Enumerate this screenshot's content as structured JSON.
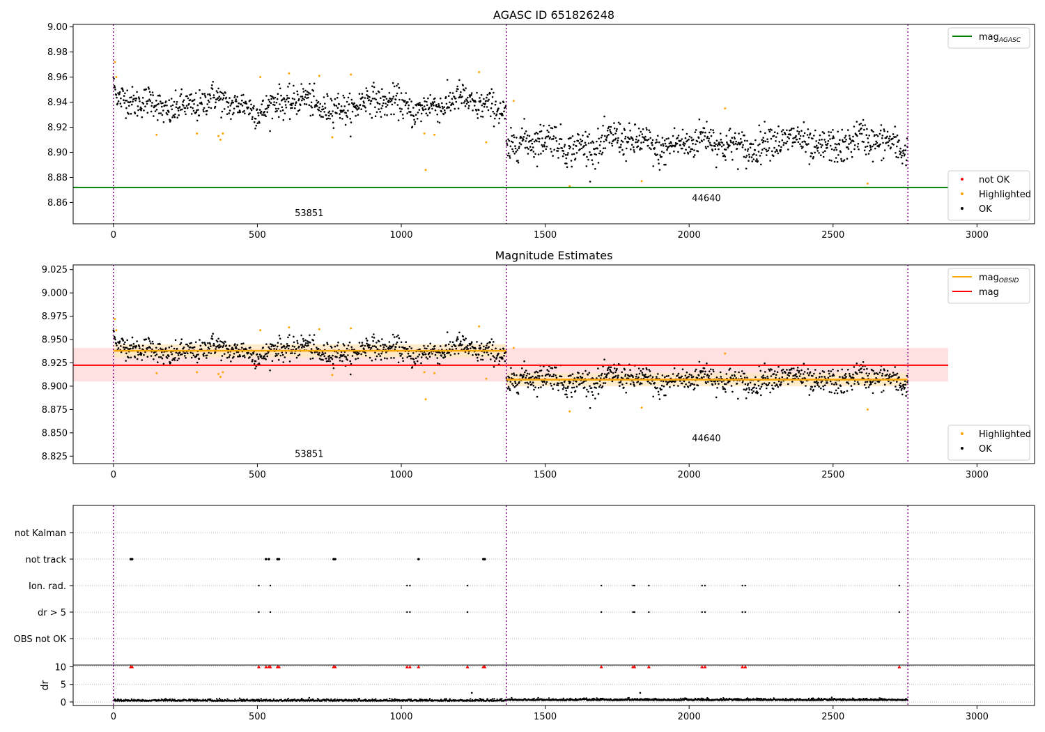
{
  "chart_data": [
    {
      "type": "scatter",
      "title": "AGASC ID 651826248",
      "xlim": [
        -140,
        3200
      ],
      "ylim": [
        8.843,
        9.002
      ],
      "x_ticks": [
        0,
        500,
        1000,
        1500,
        2000,
        2500,
        3000
      ],
      "y_ticks": [
        8.86,
        8.88,
        8.9,
        8.92,
        8.94,
        8.96,
        8.98,
        9.0
      ],
      "y_tick_labels": [
        "8.86",
        "8.88",
        "8.90",
        "8.92",
        "8.94",
        "8.96",
        "8.98",
        "9.00"
      ],
      "grid": false,
      "obsid_boundaries": [
        0,
        1365,
        2760
      ],
      "obsid_labels": [
        {
          "text": "53851",
          "x": 680,
          "y": 8.849
        },
        {
          "text": "44640",
          "x": 2060,
          "y": 8.861
        }
      ],
      "mag_agasc": {
        "y": 8.872,
        "x_range": [
          -140,
          2900
        ],
        "color": "#008000"
      },
      "legend_top": {
        "placement": "top-right",
        "entries": [
          {
            "label": "mag",
            "subscript": "AGASC",
            "color": "#008000",
            "kind": "line"
          }
        ]
      },
      "legend_bottom": {
        "placement": "bottom-right",
        "entries": [
          {
            "label": "not OK",
            "color": "#ff0000",
            "kind": "point"
          },
          {
            "label": "Highlighted",
            "color": "#ffa500",
            "kind": "point"
          },
          {
            "label": "OK",
            "color": "#000000",
            "kind": "point"
          }
        ]
      },
      "segments": [
        {
          "x_range": [
            0,
            1365
          ],
          "mean": 8.938,
          "std": 0.008,
          "initial": 8.958
        },
        {
          "x_range": [
            1365,
            2760
          ],
          "mean": 8.907,
          "std": 0.009
        }
      ],
      "highlighted_points": [
        {
          "x": 5,
          "y": 8.972
        },
        {
          "x": 10,
          "y": 8.96
        },
        {
          "x": 150,
          "y": 8.914
        },
        {
          "x": 290,
          "y": 8.915
        },
        {
          "x": 365,
          "y": 8.913
        },
        {
          "x": 372,
          "y": 8.91
        },
        {
          "x": 380,
          "y": 8.915
        },
        {
          "x": 510,
          "y": 8.96
        },
        {
          "x": 610,
          "y": 8.963
        },
        {
          "x": 715,
          "y": 8.961
        },
        {
          "x": 760,
          "y": 8.912
        },
        {
          "x": 825,
          "y": 8.962
        },
        {
          "x": 1080,
          "y": 8.915
        },
        {
          "x": 1085,
          "y": 8.886
        },
        {
          "x": 1115,
          "y": 8.914
        },
        {
          "x": 1270,
          "y": 8.964
        },
        {
          "x": 1295,
          "y": 8.908
        },
        {
          "x": 1390,
          "y": 8.941
        },
        {
          "x": 1585,
          "y": 8.873
        },
        {
          "x": 1835,
          "y": 8.877
        },
        {
          "x": 2125,
          "y": 8.935
        },
        {
          "x": 2620,
          "y": 8.875
        }
      ]
    },
    {
      "type": "scatter",
      "title": "Magnitude Estimates",
      "xlim": [
        -140,
        3200
      ],
      "ylim": [
        8.817,
        9.03
      ],
      "x_ticks": [
        0,
        500,
        1000,
        1500,
        2000,
        2500,
        3000
      ],
      "y_ticks": [
        8.825,
        8.85,
        8.875,
        8.9,
        8.925,
        8.95,
        8.975,
        9.0,
        9.025
      ],
      "y_tick_labels": [
        "8.825",
        "8.850",
        "8.875",
        "8.900",
        "8.925",
        "8.950",
        "8.975",
        "9.000",
        "9.025"
      ],
      "grid": false,
      "obsid_boundaries": [
        0,
        1365,
        2760
      ],
      "obsid_labels": [
        {
          "text": "53851",
          "x": 680,
          "y": 8.824
        },
        {
          "text": "44640",
          "x": 2060,
          "y": 8.841
        }
      ],
      "mag_line": {
        "y": 8.9225,
        "band": [
          8.905,
          8.941
        ],
        "x_range": [
          -140,
          2900
        ],
        "color": "#ff0000",
        "band_color": "#ffd9d9"
      },
      "mag_obsid": [
        {
          "x_range": [
            0,
            1365
          ],
          "y": 8.938,
          "band": [
            8.931,
            8.945
          ]
        },
        {
          "x_range": [
            1365,
            2760
          ],
          "y": 8.907,
          "band": [
            8.9,
            8.914
          ]
        }
      ],
      "legend_top": {
        "placement": "top-right",
        "entries": [
          {
            "label": "mag",
            "subscript": "OBSID",
            "color": "#ffa500",
            "kind": "line"
          },
          {
            "label": "mag",
            "subscript": "",
            "color": "#ff0000",
            "kind": "line"
          }
        ]
      },
      "legend_bottom": {
        "placement": "bottom-right",
        "entries": [
          {
            "label": "Highlighted",
            "color": "#ffa500",
            "kind": "point"
          },
          {
            "label": "OK",
            "color": "#000000",
            "kind": "point"
          }
        ]
      }
    },
    {
      "type": "scatter",
      "title": "",
      "xlim": [
        -140,
        3200
      ],
      "x_ticks": [
        0,
        500,
        1000,
        1500,
        2000,
        2500,
        3000
      ],
      "flag_rows": [
        "OBS not OK",
        "dr > 5",
        "Ion. rad.",
        "not track",
        "not Kalman"
      ],
      "flags": {
        "not track": [
          60,
          65,
          530,
          540,
          570,
          575,
          765,
          770,
          1060,
          1285,
          1290
        ],
        "Ion. rad.": [
          505,
          545,
          1020,
          1030,
          1230,
          1695,
          1805,
          1810,
          1860,
          2045,
          2055,
          2185,
          2195,
          2730
        ],
        "dr > 5": [
          505,
          545,
          1020,
          1030,
          1230,
          1695,
          1805,
          1810,
          1860,
          2045,
          2055,
          2185,
          2195,
          2730
        ]
      },
      "dr_panel": {
        "ylabel": "dr",
        "y_ticks": [
          0,
          5,
          10
        ],
        "y_tick_labels": [
          "0",
          "5",
          "10"
        ],
        "ylim": [
          -1,
          10.5
        ],
        "clip_value": 10,
        "outliers": [
          {
            "x": 1245,
            "y": 2.6
          },
          {
            "x": 1830,
            "y": 2.6
          }
        ],
        "red_markers": [
          60,
          65,
          505,
          530,
          540,
          545,
          570,
          575,
          765,
          770,
          1020,
          1030,
          1060,
          1230,
          1285,
          1290,
          1695,
          1805,
          1810,
          1860,
          2045,
          2055,
          2185,
          2195,
          2730
        ]
      },
      "obsid_boundaries": [
        0,
        1365,
        2760
      ]
    }
  ]
}
